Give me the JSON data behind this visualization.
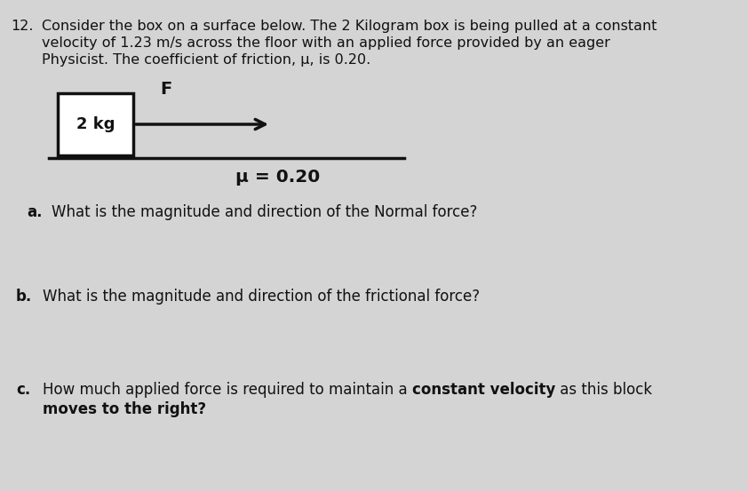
{
  "background_color": "#d4d4d4",
  "text_color": "#111111",
  "box_color": "#ffffff",
  "box_edge_color": "#111111",
  "arrow_color": "#111111",
  "line_color": "#111111",
  "question_number": "12.",
  "intro_line1": "Consider the box on a surface below. The 2 Kilogram box is being pulled at a constant",
  "intro_line2": "velocity of 1.23 m/s across the floor with an applied force provided by an eager",
  "intro_line3": "Physicist. The coefficient of friction, μ, is 0.20.",
  "box_label": "2 kg",
  "force_label": "F",
  "mu_label": "μ = 0.20",
  "qa_label": "a.",
  "qa_text": "What is the magnitude and direction of the Normal force?",
  "qb_label": "b.",
  "qb_text": "What is the magnitude and direction of the frictional force?",
  "qc_label": "c.",
  "qc_text_before_bold": "How much applied force is required to maintain a ",
  "qc_text_bold": "constant velocity",
  "qc_text_after_bold": " as this block",
  "qc_line2": "moves to the right?",
  "font_size_intro": 11.5,
  "font_size_questions": 12.0,
  "font_size_diagram": 12.0,
  "font_size_mu": 13.5
}
